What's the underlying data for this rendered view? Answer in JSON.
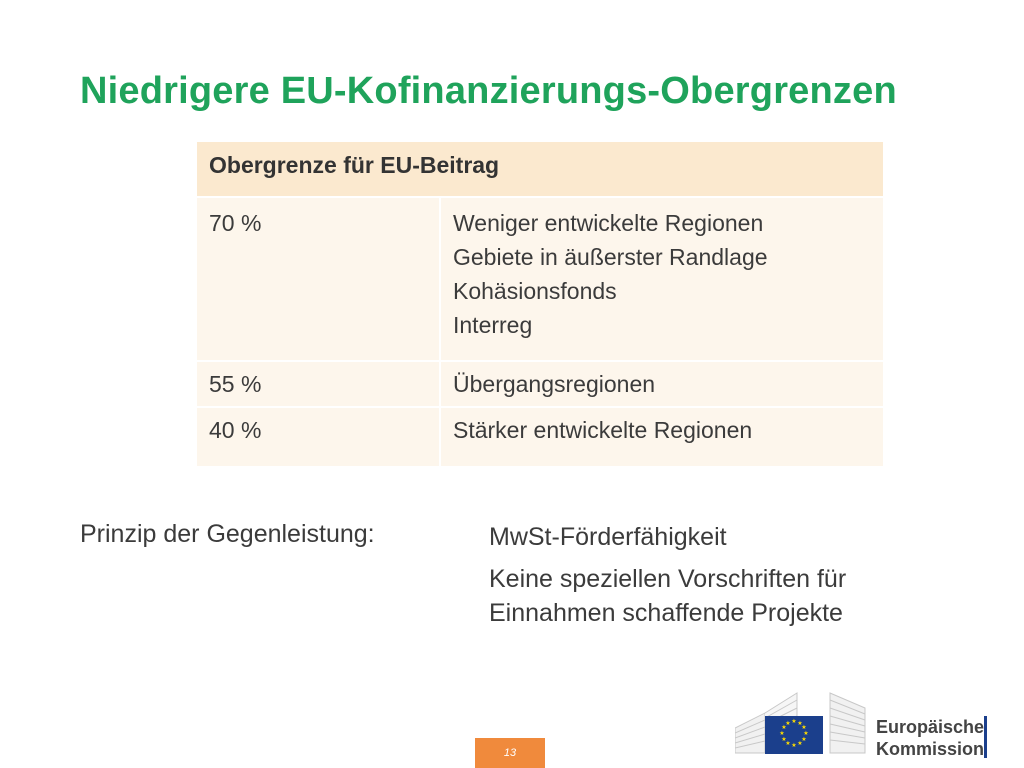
{
  "slide": {
    "title": "Niedrigere EU-Kofinanzierungs-Obergrenzen",
    "page_number": "13"
  },
  "table": {
    "header": "Obergrenze für EU-Beitrag",
    "rows": [
      {
        "rate": "70 %",
        "items": [
          "Weniger entwickelte Regionen",
          "Gebiete in äußerster Randlage",
          "Kohäsionsfonds",
          "Interreg"
        ]
      },
      {
        "rate": "55 %",
        "items": [
          "Übergangsregionen"
        ]
      },
      {
        "rate": "40 %",
        "items": [
          "Stärker entwickelte Regionen"
        ]
      }
    ]
  },
  "principle": {
    "label": "Prinzip der Gegenleistung:",
    "items": [
      "MwSt-Förderfähigkeit",
      "Keine speziellen Vorschriften für",
      "Einnahmen schaffende Projekte"
    ]
  },
  "logo": {
    "line1": "Europäische",
    "line2": "Kommission",
    "flag_color": "#1b3f8c",
    "star_color": "#ffdd00"
  },
  "colors": {
    "title": "#1fa35b",
    "table_header_bg": "#fbe9cf",
    "table_row_bg": "#fdf6ec",
    "page_badge": "#f08a3c"
  }
}
